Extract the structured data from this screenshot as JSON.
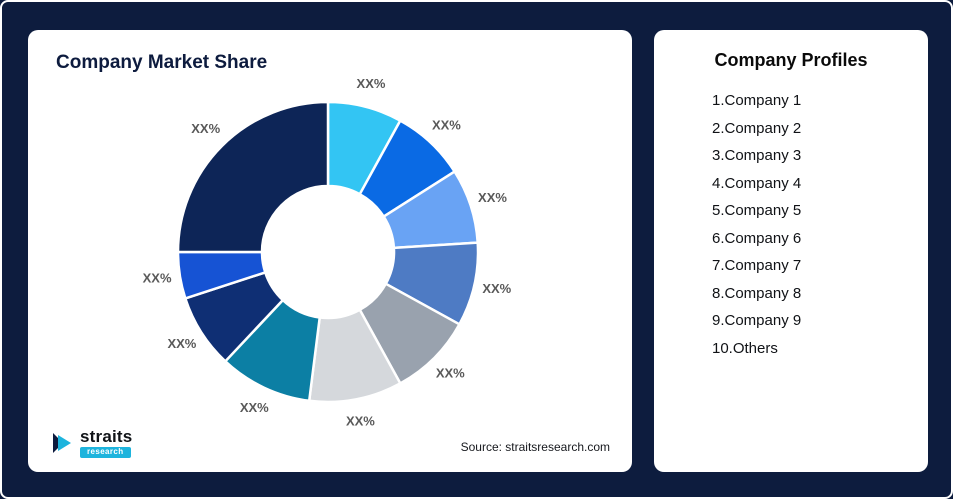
{
  "colors": {
    "background": "#0d1c3e",
    "card": "#ffffff",
    "accent": "#1db4dd",
    "title": "#0d1b3e",
    "label": "#595959"
  },
  "market_share_card": {
    "title": "Company Market Share",
    "source": "Source: straitsresearch.com",
    "logo": {
      "text": "straits",
      "subtext": "research"
    }
  },
  "profiles_card": {
    "title": "Company Profiles",
    "items": [
      "1.Company 1",
      "2.Company 2",
      "3.Company 3",
      "4.Company 4",
      "5.Company 5",
      "6.Company 6",
      "7.Company 7",
      "8.Company 8",
      "9.Company 9",
      "10.Others"
    ]
  },
  "chart_data": {
    "type": "pie",
    "variant": "donut",
    "title": "Company Market Share",
    "categories": [
      "Company 1",
      "Company 2",
      "Company 3",
      "Company 4",
      "Company 5",
      "Company 6",
      "Company 7",
      "Company 8",
      "Company 9",
      "Others"
    ],
    "values": [
      8,
      8,
      8,
      9,
      9,
      10,
      10,
      8,
      5,
      25
    ],
    "labels": [
      "XX%",
      "XX%",
      "XX%",
      "XX%",
      "XX%",
      "XX%",
      "XX%",
      "XX%",
      "XX%",
      "XX%"
    ],
    "colors": [
      "#33c5f3",
      "#0a6ae4",
      "#69a3f4",
      "#4e7bc4",
      "#99a2ae",
      "#d5d8dc",
      "#0c7fa4",
      "#0f2f74",
      "#1653d4",
      "#0d2557"
    ],
    "legend": "none",
    "start_angle_deg": -90,
    "clockwise": true,
    "inner_radius_ratio": 0.44
  }
}
